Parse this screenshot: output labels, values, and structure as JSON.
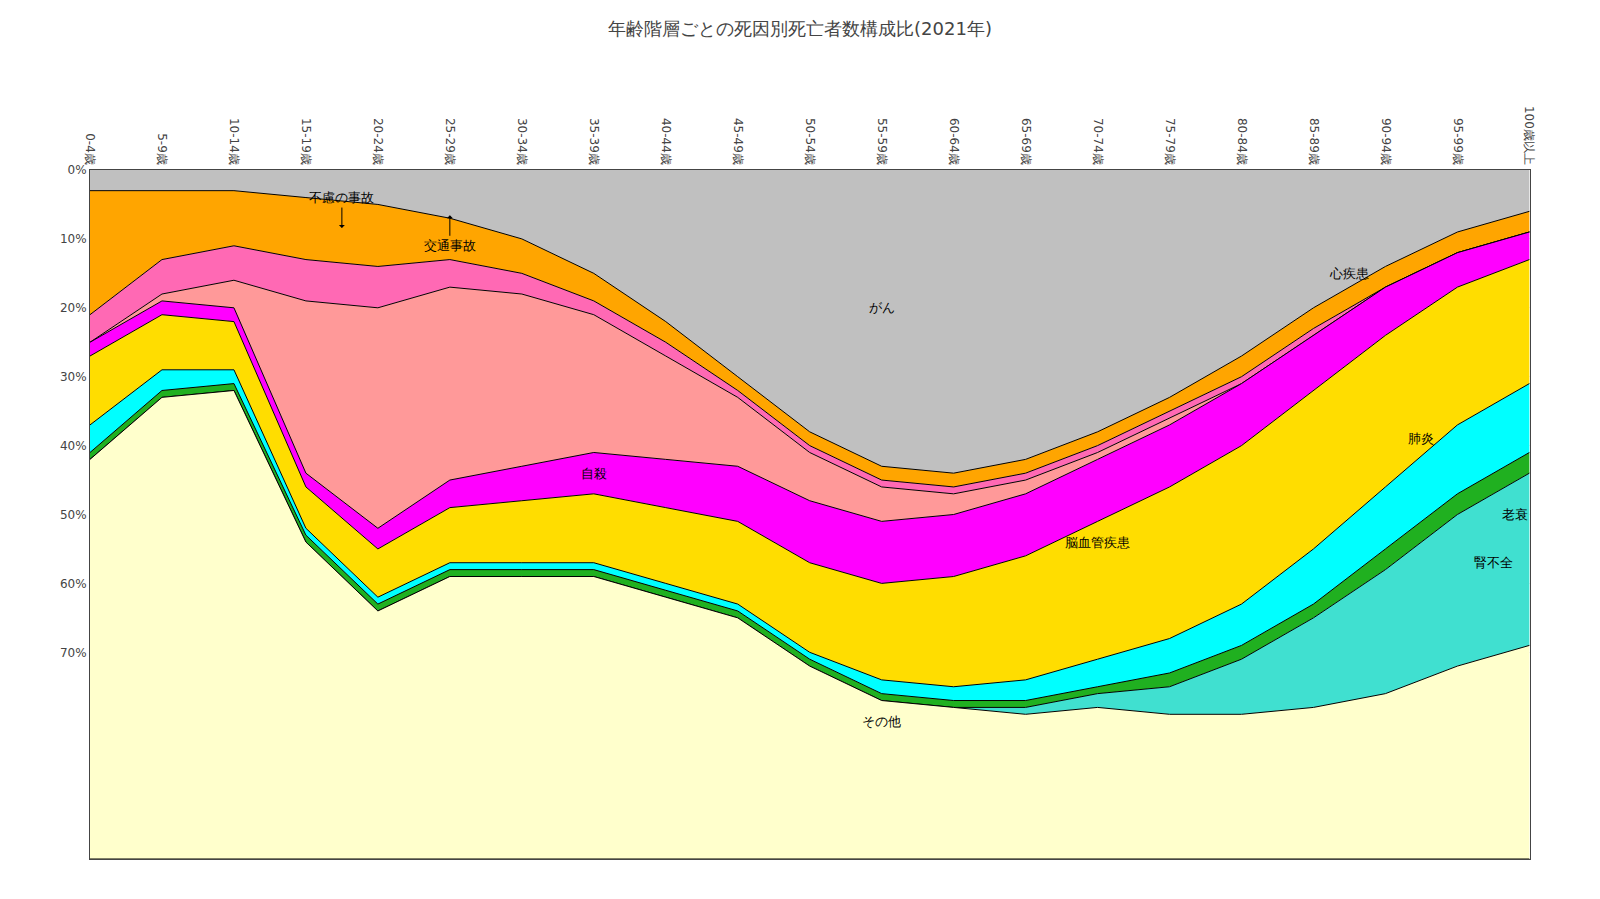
{
  "chart_data": {
    "type": "area",
    "title": "年齢階層ごとの死因別死亡者数構成比(2021年)",
    "categories": [
      "0-4歳",
      "5-9歳",
      "10-14歳",
      "15-19歳",
      "20-24歳",
      "25-29歳",
      "30-34歳",
      "35-39歳",
      "40-44歳",
      "45-49歳",
      "50-54歳",
      "55-59歳",
      "60-64歳",
      "65-69歳",
      "70-74歳",
      "75-79歳",
      "80-84歳",
      "85-89歳",
      "90-94歳",
      "95-99歳",
      "100歳以上"
    ],
    "series": [
      {
        "name": "がん",
        "color": "#c0c0c0",
        "values": [
          3,
          3,
          3,
          4,
          5,
          7,
          10,
          15,
          22,
          30,
          38,
          43,
          44,
          42,
          38,
          33,
          27,
          20,
          14,
          9,
          6
        ]
      },
      {
        "name": "不慮の事故",
        "color": "#ffa500",
        "values": [
          18,
          10,
          8,
          9,
          9,
          6,
          5,
          4,
          3,
          2,
          2,
          2,
          2,
          2,
          2,
          2,
          3,
          3,
          3,
          3,
          3
        ]
      },
      {
        "name": "交通事故",
        "color": "#ff69b4",
        "values": [
          4,
          5,
          5,
          6,
          6,
          4,
          3,
          2,
          2,
          1,
          1,
          1,
          1,
          1,
          1,
          1,
          1,
          1,
          0,
          0,
          0
        ]
      },
      {
        "name": "自殺",
        "color": "#ff9999",
        "values": [
          0,
          1,
          4,
          25,
          32,
          28,
          25,
          20,
          15,
          10,
          7,
          5,
          3,
          2,
          1,
          1,
          0,
          0,
          0,
          0,
          0
        ]
      },
      {
        "name": "脳血管疾患",
        "color": "#ff00ff",
        "values": [
          2,
          2,
          2,
          2,
          3,
          4,
          5,
          6,
          7,
          8,
          9,
          9,
          9,
          9,
          9,
          9,
          9,
          8,
          7,
          5,
          4
        ]
      },
      {
        "name": "心疾患",
        "color": "#ffdd00",
        "values": [
          10,
          8,
          7,
          6,
          7,
          8,
          9,
          10,
          11,
          12,
          13,
          14,
          16,
          18,
          20,
          22,
          23,
          23,
          22,
          20,
          18
        ]
      },
      {
        "name": "肺炎",
        "color": "#00ffff",
        "values": [
          4,
          3,
          2,
          1,
          1,
          1,
          1,
          1,
          1,
          1,
          1,
          2,
          2,
          3,
          4,
          5,
          6,
          8,
          9,
          10,
          10
        ]
      },
      {
        "name": "腎不全",
        "color": "#20b020",
        "values": [
          1,
          1,
          1,
          1,
          1,
          1,
          1,
          1,
          1,
          1,
          1,
          1,
          1,
          1,
          1,
          2,
          2,
          2,
          3,
          3,
          3
        ]
      },
      {
        "name": "老衰",
        "color": "#40e0d0",
        "values": [
          0,
          0,
          0,
          0,
          0,
          0,
          0,
          0,
          0,
          0,
          0,
          0,
          0,
          1,
          2,
          4,
          8,
          13,
          18,
          22,
          25
        ]
      },
      {
        "name": "その他",
        "color": "#ffffcc",
        "values": [
          58,
          67,
          68,
          46,
          36,
          41,
          41,
          41,
          38,
          35,
          28,
          23,
          22,
          21,
          22,
          21,
          21,
          22,
          24,
          28,
          31
        ]
      }
    ],
    "stacked": true,
    "ylim": [
      100,
      0
    ],
    "yticks": [
      {
        "value": 0,
        "label": "0%"
      },
      {
        "value": 10,
        "label": "10%"
      },
      {
        "value": 20,
        "label": "20%"
      },
      {
        "value": 30,
        "label": "30%"
      },
      {
        "value": 40,
        "label": "40%"
      },
      {
        "value": 50,
        "label": "50%"
      },
      {
        "value": 60,
        "label": "60%"
      },
      {
        "value": 70,
        "label": "70%"
      }
    ],
    "grid": true,
    "annotations": [
      {
        "text": "がん",
        "x": 11,
        "y": 20
      },
      {
        "text": "不慮の事故",
        "x": 3.5,
        "y": 4,
        "arrow": "down"
      },
      {
        "text": "交通事故",
        "x": 5,
        "y": 11,
        "arrow": "up"
      },
      {
        "text": "自殺",
        "x": 7,
        "y": 44
      },
      {
        "text": "脳血管疾患",
        "x": 14,
        "y": 54
      },
      {
        "text": "心疾患",
        "x": 17.5,
        "y": 15
      },
      {
        "text": "肺炎",
        "x": 18.5,
        "y": 39
      },
      {
        "text": "腎不全",
        "x": 19.5,
        "y": 57
      },
      {
        "text": "老衰",
        "x": 19.8,
        "y": 50
      },
      {
        "text": "その他",
        "x": 11,
        "y": 80
      }
    ]
  }
}
